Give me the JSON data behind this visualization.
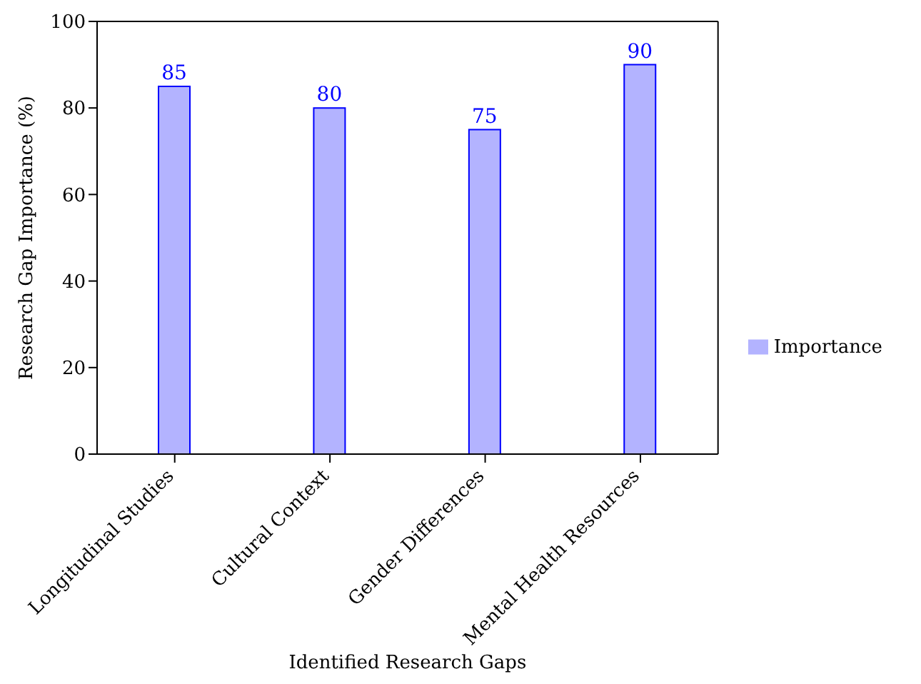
{
  "chart_data": {
    "type": "bar",
    "xlabel": "Identified Research Gaps",
    "ylabel": "Research Gap Importance (%)",
    "categories": [
      "Longitudinal Studies",
      "Cultural Context",
      "Gender Differences",
      "Mental Health Resources"
    ],
    "series": [
      {
        "name": "Importance",
        "color": "#b3b3ff",
        "values": [
          85,
          80,
          75,
          90
        ]
      }
    ],
    "ylim": [
      0,
      100
    ],
    "yticks": [
      0,
      20,
      40,
      60,
      80,
      100
    ],
    "grid": false,
    "legend": "right",
    "data_labels": true
  }
}
